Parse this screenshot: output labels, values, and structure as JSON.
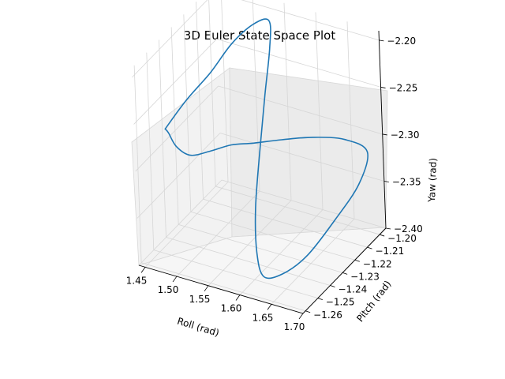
{
  "chart_data": {
    "type": "line3d",
    "title": "3D Euler State Space Plot",
    "xlabel": "Roll (rad)",
    "ylabel": "Pitch (rad)",
    "zlabel": "Yaw (rad)",
    "xlim": [
      1.44,
      1.7
    ],
    "ylim": [
      -1.262,
      -1.195
    ],
    "zlim": [
      -2.4,
      -2.19
    ],
    "x_ticks": [
      "1.45",
      "1.50",
      "1.55",
      "1.60",
      "1.65",
      "1.70"
    ],
    "y_ticks": [
      "−1.26",
      "−1.25",
      "−1.24",
      "−1.23",
      "−1.22",
      "−1.21",
      "−1.20"
    ],
    "z_ticks": [
      "−2.40",
      "−2.35",
      "−2.30",
      "−2.25",
      "−2.20"
    ],
    "grid": true,
    "colors": {
      "line": "#1f77b4",
      "pane": "#f2f2f2",
      "grid": "#d6d6d6"
    },
    "series": [
      {
        "trajectory_points": [
          [
            1.455,
            -1.245,
            -2.275
          ],
          [
            1.47,
            -1.235,
            -2.255
          ],
          [
            1.49,
            -1.225,
            -2.235
          ],
          [
            1.505,
            -1.215,
            -2.215
          ],
          [
            1.52,
            -1.205,
            -2.205
          ],
          [
            1.535,
            -1.2,
            -2.205
          ],
          [
            1.545,
            -1.205,
            -2.225
          ],
          [
            1.555,
            -1.215,
            -2.26
          ],
          [
            1.565,
            -1.225,
            -2.3
          ],
          [
            1.585,
            -1.24,
            -2.34
          ],
          [
            1.605,
            -1.25,
            -2.37
          ],
          [
            1.625,
            -1.255,
            -2.385
          ],
          [
            1.645,
            -1.25,
            -2.385
          ],
          [
            1.665,
            -1.24,
            -2.375
          ],
          [
            1.68,
            -1.225,
            -2.355
          ],
          [
            1.69,
            -1.21,
            -2.335
          ],
          [
            1.685,
            -1.2,
            -2.315
          ],
          [
            1.66,
            -1.205,
            -2.3
          ],
          [
            1.63,
            -1.215,
            -2.29
          ],
          [
            1.6,
            -1.225,
            -2.285
          ],
          [
            1.575,
            -1.235,
            -2.28
          ],
          [
            1.55,
            -1.24,
            -2.28
          ],
          [
            1.525,
            -1.245,
            -2.285
          ],
          [
            1.5,
            -1.248,
            -2.29
          ],
          [
            1.478,
            -1.248,
            -2.285
          ],
          [
            1.46,
            -1.245,
            -2.278
          ]
        ]
      }
    ]
  }
}
